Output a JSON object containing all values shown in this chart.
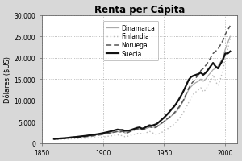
{
  "title": "Renta per Cápita",
  "ylabel": "Dólares ($US)",
  "xlim": [
    1850,
    2010
  ],
  "ylim": [
    0,
    30000
  ],
  "yticks": [
    0,
    5000,
    10000,
    15000,
    20000,
    25000,
    30000
  ],
  "ytick_labels": [
    "0",
    "5.000",
    "10.000",
    "15.000",
    "20.000",
    "25.000",
    "30.000"
  ],
  "xticks": [
    1850,
    1900,
    1950,
    2000
  ],
  "plot_bg_color": "#ffffff",
  "fig_bg_color": "#d8d8d8",
  "grid_color": "#aaaaaa",
  "series": {
    "Dinamarca": {
      "color": "#aaaaaa",
      "linestyle": "-",
      "linewidth": 0.9,
      "years": [
        1860,
        1862,
        1864,
        1866,
        1868,
        1870,
        1872,
        1874,
        1876,
        1878,
        1880,
        1882,
        1884,
        1886,
        1888,
        1890,
        1892,
        1894,
        1896,
        1898,
        1900,
        1902,
        1904,
        1906,
        1908,
        1910,
        1912,
        1914,
        1916,
        1918,
        1920,
        1922,
        1924,
        1926,
        1928,
        1930,
        1932,
        1934,
        1936,
        1938,
        1940,
        1942,
        1944,
        1946,
        1948,
        1950,
        1952,
        1954,
        1956,
        1958,
        1960,
        1962,
        1964,
        1966,
        1968,
        1970,
        1972,
        1974,
        1976,
        1978,
        1980,
        1982,
        1984,
        1986,
        1988,
        1990,
        1992,
        1994,
        1996,
        1998,
        2000,
        2002,
        2004
      ],
      "values": [
        1050,
        1080,
        1110,
        1150,
        1180,
        1250,
        1310,
        1380,
        1420,
        1450,
        1500,
        1560,
        1600,
        1650,
        1700,
        1760,
        1820,
        1890,
        1950,
        2000,
        2100,
        2200,
        2300,
        2400,
        2500,
        2600,
        2700,
        2600,
        2700,
        2400,
        2500,
        2700,
        2900,
        3100,
        3200,
        3300,
        3100,
        3300,
        3500,
        3700,
        3650,
        3800,
        3900,
        4300,
        4600,
        5000,
        5500,
        5900,
        6400,
        6800,
        7400,
        8100,
        9000,
        10000,
        11200,
        12500,
        13200,
        13800,
        14200,
        14500,
        15000,
        14500,
        15000,
        15800,
        16500,
        17200,
        17500,
        18000,
        19000,
        20000,
        22000,
        23500,
        25000
      ]
    },
    "Finlandia": {
      "color": "#bbbbbb",
      "linestyle": "dotted",
      "linewidth": 1.0,
      "years": [
        1860,
        1862,
        1864,
        1866,
        1868,
        1870,
        1872,
        1874,
        1876,
        1878,
        1880,
        1882,
        1884,
        1886,
        1888,
        1890,
        1892,
        1894,
        1896,
        1898,
        1900,
        1902,
        1904,
        1906,
        1908,
        1910,
        1912,
        1914,
        1916,
        1918,
        1920,
        1922,
        1924,
        1926,
        1928,
        1930,
        1932,
        1934,
        1936,
        1938,
        1940,
        1942,
        1944,
        1946,
        1948,
        1950,
        1952,
        1954,
        1956,
        1958,
        1960,
        1962,
        1964,
        1966,
        1968,
        1970,
        1972,
        1974,
        1976,
        1978,
        1980,
        1982,
        1984,
        1986,
        1988,
        1990,
        1992,
        1994,
        1996,
        1998,
        2000,
        2002,
        2004
      ],
      "values": [
        850,
        870,
        890,
        910,
        930,
        950,
        980,
        1000,
        1020,
        1040,
        1060,
        1090,
        1120,
        1150,
        1180,
        1210,
        1250,
        1290,
        1330,
        1380,
        1450,
        1520,
        1600,
        1680,
        1760,
        1850,
        1950,
        1800,
        1750,
        1500,
        1600,
        1750,
        1950,
        2100,
        2250,
        2350,
        2100,
        2200,
        2500,
        2800,
        2500,
        2200,
        2000,
        2200,
        2500,
        2900,
        3200,
        3600,
        4000,
        4400,
        5000,
        5600,
        6400,
        7300,
        8300,
        9500,
        10500,
        11500,
        12000,
        12500,
        13000,
        12000,
        12500,
        13500,
        14800,
        16000,
        14500,
        13500,
        15000,
        17000,
        20000,
        22000,
        24500
      ]
    },
    "Noruega": {
      "color": "#555555",
      "linestyle": "--",
      "linewidth": 1.1,
      "years": [
        1860,
        1862,
        1864,
        1866,
        1868,
        1870,
        1872,
        1874,
        1876,
        1878,
        1880,
        1882,
        1884,
        1886,
        1888,
        1890,
        1892,
        1894,
        1896,
        1898,
        1900,
        1902,
        1904,
        1906,
        1908,
        1910,
        1912,
        1914,
        1916,
        1918,
        1920,
        1922,
        1924,
        1926,
        1928,
        1930,
        1932,
        1934,
        1936,
        1938,
        1940,
        1942,
        1944,
        1946,
        1948,
        1950,
        1952,
        1954,
        1956,
        1958,
        1960,
        1962,
        1964,
        1966,
        1968,
        1970,
        1972,
        1974,
        1976,
        1978,
        1980,
        1982,
        1984,
        1986,
        1988,
        1990,
        1992,
        1994,
        1996,
        1998,
        2000,
        2002,
        2004
      ],
      "values": [
        950,
        980,
        1010,
        1050,
        1090,
        1130,
        1180,
        1230,
        1270,
        1300,
        1350,
        1400,
        1450,
        1510,
        1570,
        1640,
        1700,
        1780,
        1860,
        1950,
        2050,
        2150,
        2250,
        2380,
        2500,
        2620,
        2750,
        2650,
        2800,
        2550,
        2400,
        2700,
        2950,
        3100,
        3300,
        3400,
        3100,
        3300,
        3600,
        3900,
        3700,
        3600,
        3800,
        4300,
        4700,
        5100,
        5600,
        6000,
        6500,
        7000,
        7700,
        8400,
        9200,
        10200,
        11500,
        12800,
        13800,
        14500,
        15300,
        16000,
        17000,
        17500,
        18200,
        19000,
        20000,
        21000,
        21500,
        22000,
        23000,
        24000,
        25500,
        26500,
        27500
      ]
    },
    "Suecia": {
      "color": "#111111",
      "linestyle": "-",
      "linewidth": 1.6,
      "years": [
        1860,
        1862,
        1864,
        1866,
        1868,
        1870,
        1872,
        1874,
        1876,
        1878,
        1880,
        1882,
        1884,
        1886,
        1888,
        1890,
        1892,
        1894,
        1896,
        1898,
        1900,
        1902,
        1904,
        1906,
        1908,
        1910,
        1912,
        1914,
        1916,
        1918,
        1920,
        1922,
        1924,
        1926,
        1928,
        1930,
        1932,
        1934,
        1936,
        1938,
        1940,
        1942,
        1944,
        1946,
        1948,
        1950,
        1952,
        1954,
        1956,
        1958,
        1960,
        1962,
        1964,
        1966,
        1968,
        1970,
        1972,
        1974,
        1976,
        1978,
        1980,
        1982,
        1984,
        1986,
        1988,
        1990,
        1992,
        1994,
        1996,
        1998,
        2000,
        2002,
        2004
      ],
      "values": [
        1000,
        1040,
        1080,
        1120,
        1160,
        1200,
        1270,
        1340,
        1400,
        1450,
        1520,
        1590,
        1650,
        1720,
        1800,
        1880,
        1960,
        2040,
        2130,
        2230,
        2350,
        2480,
        2600,
        2750,
        2900,
        3050,
        3200,
        3100,
        3100,
        2900,
        2900,
        3000,
        3200,
        3400,
        3600,
        3700,
        3400,
        3600,
        3900,
        4200,
        4100,
        4300,
        4500,
        5000,
        5500,
        6000,
        6600,
        7200,
        7900,
        8500,
        9300,
        10200,
        11200,
        12300,
        13500,
        14800,
        15500,
        15800,
        16000,
        16200,
        16500,
        16000,
        16500,
        17200,
        18000,
        18800,
        18000,
        17500,
        18500,
        19500,
        21000,
        21000,
        21500
      ]
    }
  }
}
